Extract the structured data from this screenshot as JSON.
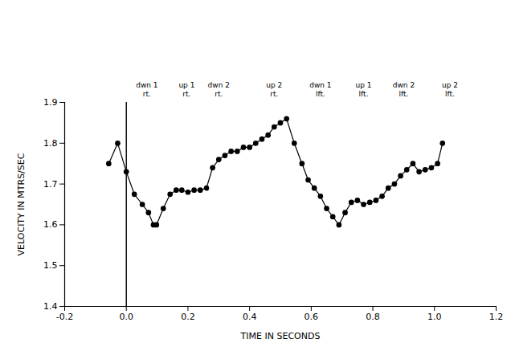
{
  "chart_data": {
    "type": "line",
    "xlabel": "TIME IN SECONDS",
    "ylabel": "VELOCITY IN MTRS/SEC",
    "x": [
      -0.057,
      -0.028,
      0.0,
      0.026,
      0.052,
      0.072,
      0.088,
      0.098,
      0.12,
      0.142,
      0.162,
      0.18,
      0.2,
      0.22,
      0.24,
      0.26,
      0.28,
      0.3,
      0.32,
      0.34,
      0.36,
      0.38,
      0.4,
      0.42,
      0.44,
      0.46,
      0.48,
      0.5,
      0.52,
      0.545,
      0.57,
      0.59,
      0.61,
      0.63,
      0.65,
      0.67,
      0.69,
      0.71,
      0.73,
      0.75,
      0.77,
      0.79,
      0.81,
      0.83,
      0.85,
      0.87,
      0.89,
      0.91,
      0.93,
      0.95,
      0.97,
      0.99,
      1.01,
      1.026
    ],
    "values": [
      1.75,
      1.8,
      1.73,
      1.675,
      1.65,
      1.63,
      1.6,
      1.6,
      1.64,
      1.675,
      1.685,
      1.685,
      1.68,
      1.685,
      1.685,
      1.69,
      1.74,
      1.76,
      1.77,
      1.78,
      1.78,
      1.79,
      1.79,
      1.8,
      1.81,
      1.82,
      1.84,
      1.85,
      1.86,
      1.8,
      1.75,
      1.71,
      1.69,
      1.67,
      1.64,
      1.62,
      1.6,
      1.63,
      1.655,
      1.66,
      1.65,
      1.655,
      1.66,
      1.67,
      1.69,
      1.7,
      1.72,
      1.735,
      1.75,
      1.73,
      1.735,
      1.74,
      1.75,
      1.8
    ],
    "color": "#000000",
    "marker": "circle",
    "line_style": "solid",
    "xlim": [
      -0.2,
      1.2
    ],
    "xticks": [
      -0.2,
      {
        "value": 0,
        "label": "0.0"
      },
      0.2,
      0.4,
      0.6,
      0.8,
      {
        "value": 1,
        "label": "1.0"
      },
      1.2
    ],
    "ylim": [
      1.4,
      1.9
    ],
    "yticks": [
      1.4,
      1.5,
      1.6,
      1.7,
      1.8,
      1.9
    ],
    "grid": false,
    "vertical_line": 0,
    "annotations": [
      {
        "text": "dwn 1 rt.",
        "x": 0.067
      },
      {
        "text": "up 1 rt.",
        "x": 0.196
      },
      {
        "text": "dwn 2 rt.",
        "x": 0.3
      },
      {
        "text": "up 2 rt.",
        "x": 0.48
      },
      {
        "text": "dwn 1 lft.",
        "x": 0.63
      },
      {
        "text": "up 1 lft.",
        "x": 0.77
      },
      {
        "text": "dwn 2 lft.",
        "x": 0.9
      },
      {
        "text": "up 2 lft.",
        "x": 1.05
      }
    ]
  }
}
